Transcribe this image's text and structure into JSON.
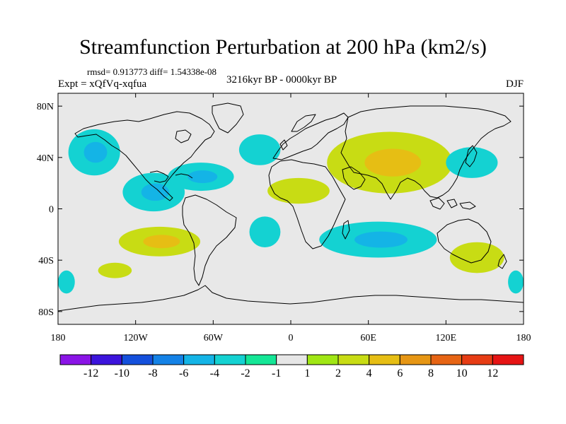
{
  "title": "Streamfunction Perturbation at 200 hPa (km2/s)",
  "stats_line": "rmsd= 0.913773 diff= 1.54338e-08",
  "experiment": "Expt = xQfVq-xqfua",
  "period": "3216kyr BP - 0000kyr BP",
  "season": "DJF",
  "chart_data": {
    "type": "filled-contour-map",
    "variable": "streamfunction perturbation",
    "level": "200 hPa",
    "units": "km2/s",
    "projection": "cylindrical equidistant",
    "lon_range": [
      -180,
      180
    ],
    "lat_range": [
      -90,
      90
    ],
    "x_ticks": [
      {
        "lon": -180,
        "label": "180"
      },
      {
        "lon": -120,
        "label": "120W"
      },
      {
        "lon": -60,
        "label": "60W"
      },
      {
        "lon": 0,
        "label": "0"
      },
      {
        "lon": 60,
        "label": "60E"
      },
      {
        "lon": 120,
        "label": "120E"
      },
      {
        "lon": 180,
        "label": "180"
      }
    ],
    "y_ticks": [
      {
        "lat": 80,
        "label": "80N"
      },
      {
        "lat": 40,
        "label": "40N"
      },
      {
        "lat": 0,
        "label": "0"
      },
      {
        "lat": -40,
        "label": "40S"
      },
      {
        "lat": -80,
        "label": "80S"
      }
    ],
    "colorbar": {
      "colors": [
        "#8a14e6",
        "#3c14dc",
        "#1450dc",
        "#1482e6",
        "#14b4e6",
        "#14d2d2",
        "#14e696",
        "#e6e6e6",
        "#a0e614",
        "#c8dc14",
        "#e6be14",
        "#e69614",
        "#e66414",
        "#e63c14",
        "#e61414"
      ],
      "tick_labels": [
        "-12",
        "-10",
        "-8",
        "-6",
        "-4",
        "-2",
        "-1",
        "1",
        "2",
        "4",
        "6",
        "8",
        "10",
        "12"
      ]
    },
    "regions": [
      {
        "sign": "negative",
        "level": -2,
        "lon": [
          -172,
          -132
        ],
        "lat": [
          26,
          62
        ],
        "peak": -4
      },
      {
        "sign": "negative",
        "level": -2,
        "lon": [
          -130,
          -82
        ],
        "lat": [
          -2,
          28
        ],
        "peak": -4
      },
      {
        "sign": "negative",
        "level": -2,
        "lon": [
          -95,
          -44
        ],
        "lat": [
          14,
          36
        ],
        "peak": -4
      },
      {
        "sign": "positive",
        "level": 2,
        "lon": [
          -133,
          -70
        ],
        "lat": [
          -37,
          -14
        ],
        "peak": 4
      },
      {
        "sign": "negative",
        "level": -2,
        "lon": [
          -40,
          -8
        ],
        "lat": [
          34,
          58
        ],
        "peak": -2
      },
      {
        "sign": "positive",
        "level": 2,
        "lon": [
          -18,
          30
        ],
        "lat": [
          4,
          24
        ],
        "peak": 2
      },
      {
        "sign": "positive",
        "level": 2,
        "lon": [
          28,
          125
        ],
        "lat": [
          12,
          60
        ],
        "peak": 4
      },
      {
        "sign": "negative",
        "level": -2,
        "lon": [
          -32,
          -8
        ],
        "lat": [
          -30,
          -6
        ],
        "peak": -2
      },
      {
        "sign": "negative",
        "level": -2,
        "lon": [
          22,
          113
        ],
        "lat": [
          -38,
          -10
        ],
        "peak": -4
      },
      {
        "sign": "negative",
        "level": -2,
        "lon": [
          120,
          160
        ],
        "lat": [
          24,
          48
        ],
        "peak": -2
      },
      {
        "sign": "positive",
        "level": 2,
        "lon": [
          123,
          165
        ],
        "lat": [
          -50,
          -26
        ],
        "peak": 2
      },
      {
        "sign": "positive",
        "level": 2,
        "lon": [
          -149,
          -123
        ],
        "lat": [
          -54,
          -42
        ],
        "peak": 2
      },
      {
        "sign": "negative",
        "level": -2,
        "lon": [
          -180,
          -167
        ],
        "lat": [
          -66,
          -48
        ],
        "peak": -2
      },
      {
        "sign": "negative",
        "level": -2,
        "lon": [
          168,
          180
        ],
        "lat": [
          -66,
          -48
        ],
        "peak": -2
      }
    ]
  }
}
